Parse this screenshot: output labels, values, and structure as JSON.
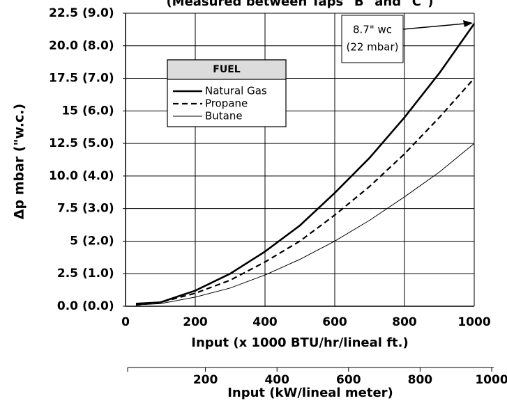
{
  "chart_data": {
    "type": "line",
    "title": "(Measured between Taps \"B\" and \"C\")",
    "ylabel": "Δp mbar (\"w.c.)",
    "xlabel": "Input (x 1000 BTU/hr/lineal ft.)",
    "x2label": "Input (kW/lineal meter)",
    "x": [
      30,
      100,
      200,
      300,
      400,
      500,
      600,
      700,
      800,
      900,
      1000
    ],
    "series": [
      {
        "name": "Natural Gas",
        "color": "#000000",
        "linestyle": "solid",
        "linewidth": 2.6,
        "values": [
          0.2,
          0.3,
          1.2,
          2.5,
          4.2,
          6.2,
          8.7,
          11.4,
          14.5,
          17.9,
          21.7
        ]
      },
      {
        "name": "Propane",
        "color": "#000000",
        "linestyle": "dashed",
        "linewidth": 2.2,
        "values": [
          0.1,
          0.3,
          1.0,
          2.0,
          3.4,
          5.0,
          7.0,
          9.2,
          11.7,
          14.5,
          17.5
        ]
      },
      {
        "name": "Butane",
        "color": "#000000",
        "linestyle": "solid",
        "linewidth": 1,
        "values": [
          0.1,
          0.2,
          0.7,
          1.4,
          2.4,
          3.6,
          5.0,
          6.6,
          8.4,
          10.3,
          12.5
        ]
      }
    ],
    "legend_title": "FUEL",
    "legend_position": "upper left",
    "annotations": [
      "8.7\" wc",
      "(22 mbar)"
    ],
    "xlim": [
      0,
      1000
    ],
    "xticks": [
      0,
      200,
      400,
      600,
      800,
      1000
    ],
    "ylim": [
      0,
      22.5
    ],
    "yticks": [
      {
        "value": 0,
        "label": "0.0"
      },
      2.5,
      5.0,
      7.5,
      {
        "value": 10,
        "label": "10.0"
      },
      12.5,
      15.0,
      17.5,
      {
        "value": 20,
        "label": "20.0"
      },
      22.5
    ],
    "y2lim": [
      0,
      9
    ],
    "y2ticks": [
      {
        "value": 0,
        "label": "(0.0)"
      },
      {
        "value": 1,
        "label": "(1.0)"
      },
      {
        "value": 2,
        "label": "(2.0)"
      },
      {
        "value": 3,
        "label": "(3.0)"
      },
      {
        "value": 4,
        "label": "(4.0)"
      },
      {
        "value": 5,
        "label": "(5.0)"
      },
      {
        "value": 6,
        "label": "(6.0)"
      },
      {
        "value": 7,
        "label": "(7.0)"
      },
      {
        "value": 8,
        "label": "(8.0)"
      },
      {
        "value": 9,
        "label": "(9.0)"
      }
    ],
    "x2lim": [
      0,
      1000
    ],
    "x2ticks": [
      200,
      400,
      600,
      800,
      1000
    ],
    "grid": true
  }
}
